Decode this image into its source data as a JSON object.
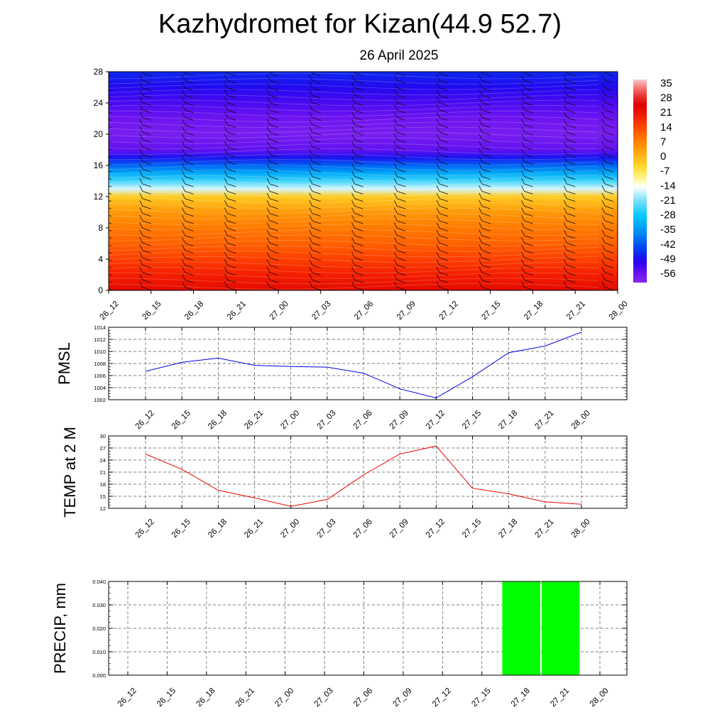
{
  "title": "Kazhydromet for Kizan(44.9 52.7)",
  "subtitle": "26 April 2025",
  "time_labels": [
    "26_12",
    "26_15",
    "26_18",
    "26_21",
    "27_00",
    "27_03",
    "27_06",
    "27_09",
    "27_12",
    "27_15",
    "27_18",
    "27_21",
    "28_00"
  ],
  "colors": {
    "pmsl_line": "#0000dd",
    "temp_line": "#ee0000",
    "precip_bar": "#00ff00",
    "grid": "#555555"
  },
  "chart_data": [
    {
      "type": "heatmap",
      "yticks": [
        0,
        4,
        8,
        12,
        16,
        20,
        24,
        28
      ],
      "ylim": [
        0,
        28
      ],
      "colorbar_labels": [
        "35",
        "28",
        "21",
        "14",
        "7",
        "0",
        "-7",
        "-14",
        "-21",
        "-28",
        "-35",
        "-42",
        "-49",
        "-56"
      ],
      "color_range": [
        -60,
        38
      ],
      "profile": [
        {
          "h": 0,
          "v": 24
        },
        {
          "h": 2,
          "v": 20
        },
        {
          "h": 4,
          "v": 16
        },
        {
          "h": 6,
          "v": 12
        },
        {
          "h": 8,
          "v": 9
        },
        {
          "h": 10,
          "v": 5
        },
        {
          "h": 12,
          "v": -2
        },
        {
          "h": 13,
          "v": -16
        },
        {
          "h": 14,
          "v": -24
        },
        {
          "h": 15,
          "v": -32
        },
        {
          "h": 16,
          "v": -40
        },
        {
          "h": 17,
          "v": -48
        },
        {
          "h": 18,
          "v": -55
        },
        {
          "h": 20,
          "v": -58
        },
        {
          "h": 22,
          "v": -56
        },
        {
          "h": 24,
          "v": -53
        },
        {
          "h": 26,
          "v": -49
        },
        {
          "h": 28,
          "v": -46
        }
      ]
    },
    {
      "type": "line",
      "ylabel": "PMSL",
      "ylim": [
        1002,
        1014
      ],
      "yticks": [
        1002,
        1004,
        1006,
        1008,
        1010,
        1012,
        1014
      ],
      "x": [
        "26_12",
        "26_15",
        "26_18",
        "26_21",
        "27_00",
        "27_03",
        "27_06",
        "27_09",
        "27_12",
        "27_15",
        "27_18",
        "27_21",
        "28_00"
      ],
      "values": [
        1006.7,
        1008.2,
        1008.9,
        1007.7,
        1007.5,
        1007.4,
        1006.4,
        1003.8,
        1002.3,
        1005.8,
        1009.8,
        1010.9,
        1013.2
      ]
    },
    {
      "type": "line",
      "ylabel": "TEMP at 2 M",
      "ylim": [
        12,
        30
      ],
      "yticks": [
        12,
        15,
        18,
        21,
        24,
        27,
        30
      ],
      "x": [
        "26_12",
        "26_15",
        "26_18",
        "26_21",
        "27_00",
        "27_03",
        "27_06",
        "27_09",
        "27_12",
        "27_15",
        "27_18",
        "27_21",
        "28_00"
      ],
      "values": [
        25.5,
        21.7,
        16.5,
        14.6,
        12.5,
        14.2,
        20.3,
        25.5,
        27.5,
        17.0,
        15.6,
        13.6,
        13.0
      ]
    },
    {
      "type": "bar",
      "ylabel": "PRECIP, mm",
      "ylim": [
        0,
        0.04
      ],
      "yticks": [
        "0.000",
        "0.010",
        "0.020",
        "0.030",
        "0.040"
      ],
      "categories": [
        "26_12",
        "26_15",
        "26_18",
        "26_21",
        "27_00",
        "27_03",
        "27_06",
        "27_09",
        "27_12",
        "27_15",
        "27_18",
        "27_21",
        "28_00"
      ],
      "values": [
        0,
        0,
        0,
        0,
        0,
        0,
        0,
        0,
        0,
        0,
        0.04,
        0.04,
        0
      ]
    }
  ]
}
